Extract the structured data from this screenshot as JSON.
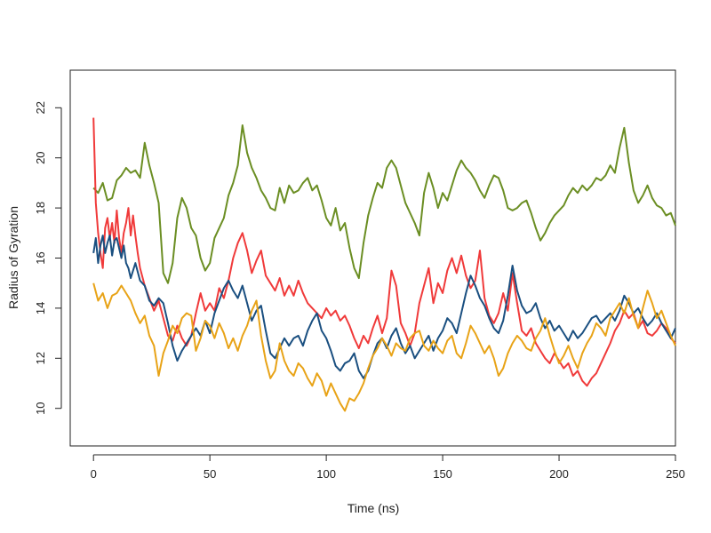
{
  "chart_data": {
    "type": "line",
    "title": "",
    "xlabel": "Time (ns)",
    "ylabel": "Radius of Gyration",
    "xlim": [
      -10,
      250
    ],
    "ylim": [
      8.5,
      23.5
    ],
    "x_ticks": [
      0,
      50,
      100,
      150,
      200,
      250
    ],
    "y_ticks": [
      10,
      12,
      14,
      16,
      18,
      20,
      22
    ],
    "x_tick_labels": [
      "0",
      "50",
      "100",
      "150",
      "200",
      "250"
    ],
    "y_tick_labels": [
      "10",
      "12",
      "14",
      "16",
      "18",
      "20",
      "22"
    ],
    "legend": "none",
    "grid": false,
    "series": [
      {
        "color": "#6b8e23",
        "x": [
          0,
          2,
          4,
          6,
          8,
          10,
          12,
          14,
          16,
          18,
          20,
          22,
          24,
          26,
          28,
          30,
          32,
          34,
          36,
          38,
          40,
          42,
          44,
          46,
          48,
          50,
          52,
          54,
          56,
          58,
          60,
          62,
          64,
          66,
          68,
          70,
          72,
          74,
          76,
          78,
          80,
          82,
          84,
          86,
          88,
          90,
          92,
          94,
          96,
          98,
          100,
          102,
          104,
          106,
          108,
          110,
          112,
          114,
          116,
          118,
          120,
          122,
          124,
          126,
          128,
          130,
          132,
          134,
          136,
          138,
          140,
          142,
          144,
          146,
          148,
          150,
          152,
          154,
          156,
          158,
          160,
          162,
          164,
          166,
          168,
          170,
          172,
          174,
          176,
          178,
          180,
          182,
          184,
          186,
          188,
          190,
          192,
          194,
          196,
          198,
          200,
          202,
          204,
          206,
          208,
          210,
          212,
          214,
          216,
          218,
          220,
          222,
          224,
          226,
          228,
          230,
          232,
          234,
          236,
          238,
          240,
          242,
          244,
          246,
          248,
          250
        ],
        "values": [
          18.8,
          18.6,
          19.0,
          18.3,
          18.4,
          19.1,
          19.3,
          19.6,
          19.4,
          19.5,
          19.2,
          20.6,
          19.7,
          19.0,
          18.2,
          15.4,
          15.0,
          15.8,
          17.6,
          18.4,
          18.0,
          17.2,
          16.9,
          16.0,
          15.5,
          15.8,
          16.8,
          17.2,
          17.6,
          18.5,
          19.0,
          19.7,
          21.3,
          20.2,
          19.6,
          19.2,
          18.7,
          18.4,
          18.0,
          17.9,
          18.8,
          18.2,
          18.9,
          18.6,
          18.7,
          19.0,
          19.2,
          18.7,
          18.9,
          18.3,
          17.6,
          17.3,
          18.0,
          17.1,
          17.4,
          16.4,
          15.6,
          15.2,
          16.6,
          17.7,
          18.4,
          19.0,
          18.8,
          19.6,
          19.9,
          19.6,
          18.9,
          18.2,
          17.8,
          17.4,
          16.9,
          18.6,
          19.4,
          18.8,
          18.0,
          18.6,
          18.3,
          18.9,
          19.5,
          19.9,
          19.6,
          19.4,
          19.1,
          18.7,
          18.4,
          18.9,
          19.3,
          19.2,
          18.7,
          18.0,
          17.9,
          18.0,
          18.2,
          18.3,
          17.8,
          17.2,
          16.7,
          17.0,
          17.4,
          17.7,
          17.9,
          18.1,
          18.5,
          18.8,
          18.6,
          18.9,
          18.7,
          18.9,
          19.2,
          19.1,
          19.3,
          19.7,
          19.4,
          20.4,
          21.2,
          19.8,
          18.7,
          18.2,
          18.5,
          18.9,
          18.4,
          18.1,
          18.0,
          17.7,
          17.8,
          17.3
        ]
      },
      {
        "color": "#f03a3a",
        "x": [
          0,
          1,
          2,
          3,
          4,
          5,
          6,
          7,
          8,
          9,
          10,
          11,
          12,
          13,
          14,
          15,
          16,
          17,
          18,
          19,
          20,
          22,
          24,
          26,
          28,
          30,
          32,
          34,
          36,
          38,
          40,
          42,
          44,
          46,
          48,
          50,
          52,
          54,
          56,
          58,
          60,
          62,
          64,
          66,
          68,
          70,
          72,
          74,
          76,
          78,
          80,
          82,
          84,
          86,
          88,
          90,
          92,
          94,
          96,
          98,
          100,
          102,
          104,
          106,
          108,
          110,
          112,
          114,
          116,
          118,
          120,
          122,
          124,
          126,
          128,
          130,
          132,
          134,
          136,
          138,
          140,
          142,
          144,
          146,
          148,
          150,
          152,
          154,
          156,
          158,
          160,
          162,
          164,
          166,
          168,
          170,
          172,
          174,
          176,
          178,
          180,
          182,
          184,
          186,
          188,
          190,
          192,
          194,
          196,
          198,
          200,
          202,
          204,
          206,
          208,
          210,
          212,
          214,
          216,
          218,
          220,
          222,
          224,
          226,
          228,
          230,
          232,
          234,
          236,
          238,
          240,
          242,
          244,
          246,
          248,
          250
        ],
        "values": [
          21.6,
          18.2,
          17.0,
          16.2,
          15.6,
          17.2,
          17.6,
          16.8,
          17.4,
          16.6,
          17.9,
          16.8,
          16.2,
          17.0,
          17.4,
          18.0,
          16.9,
          17.7,
          16.9,
          16.2,
          15.6,
          14.9,
          14.4,
          13.9,
          14.3,
          13.6,
          12.9,
          12.7,
          13.3,
          12.8,
          12.5,
          12.9,
          13.8,
          14.6,
          13.9,
          14.2,
          13.9,
          14.8,
          14.4,
          15.1,
          16.0,
          16.6,
          17.0,
          16.3,
          15.4,
          15.9,
          16.3,
          15.3,
          15.0,
          14.7,
          15.2,
          14.5,
          14.9,
          14.5,
          15.1,
          14.6,
          14.2,
          14.0,
          13.8,
          13.6,
          14.0,
          13.7,
          13.9,
          13.5,
          13.7,
          13.3,
          12.8,
          12.4,
          12.9,
          12.6,
          13.2,
          13.7,
          13.0,
          13.6,
          15.5,
          14.9,
          13.4,
          13.0,
          12.5,
          13.0,
          14.2,
          14.9,
          15.6,
          14.2,
          15.0,
          14.6,
          15.5,
          16.0,
          15.4,
          16.1,
          15.3,
          14.8,
          15.1,
          16.3,
          14.4,
          13.7,
          13.4,
          13.8,
          14.6,
          13.9,
          15.4,
          14.2,
          13.1,
          12.9,
          13.2,
          12.6,
          12.3,
          12.0,
          11.8,
          12.2,
          11.9,
          11.6,
          11.8,
          11.3,
          11.5,
          11.1,
          10.9,
          11.2,
          11.4,
          11.8,
          12.2,
          12.6,
          13.1,
          13.4,
          13.9,
          13.6,
          13.8,
          13.2,
          13.5,
          13.0,
          12.9,
          13.1,
          13.4,
          13.2,
          12.8,
          12.6
        ]
      },
      {
        "color": "#1a4f80",
        "x": [
          0,
          1,
          2,
          3,
          4,
          5,
          6,
          7,
          8,
          9,
          10,
          11,
          12,
          13,
          14,
          15,
          16,
          18,
          20,
          22,
          24,
          26,
          28,
          30,
          32,
          34,
          36,
          38,
          40,
          42,
          44,
          46,
          48,
          50,
          52,
          54,
          56,
          58,
          60,
          62,
          64,
          66,
          68,
          70,
          72,
          74,
          76,
          78,
          80,
          82,
          84,
          86,
          88,
          90,
          92,
          94,
          96,
          98,
          100,
          102,
          104,
          106,
          108,
          110,
          112,
          114,
          116,
          118,
          120,
          122,
          124,
          126,
          128,
          130,
          132,
          134,
          136,
          138,
          140,
          142,
          144,
          146,
          148,
          150,
          152,
          154,
          156,
          158,
          160,
          162,
          164,
          166,
          168,
          170,
          172,
          174,
          176,
          178,
          180,
          182,
          184,
          186,
          188,
          190,
          192,
          194,
          196,
          198,
          200,
          202,
          204,
          206,
          208,
          210,
          212,
          214,
          216,
          218,
          220,
          222,
          224,
          226,
          228,
          230,
          232,
          234,
          236,
          238,
          240,
          242,
          244,
          246,
          248,
          250
        ],
        "values": [
          16.2,
          16.8,
          15.8,
          16.5,
          16.9,
          16.2,
          16.6,
          16.9,
          16.1,
          16.7,
          16.8,
          16.4,
          16.0,
          16.5,
          15.8,
          15.6,
          15.2,
          15.8,
          15.1,
          14.9,
          14.3,
          14.1,
          14.4,
          14.2,
          13.4,
          12.5,
          11.9,
          12.3,
          12.6,
          12.9,
          13.2,
          12.9,
          13.5,
          13.0,
          13.8,
          14.3,
          14.8,
          15.1,
          14.7,
          14.4,
          14.9,
          14.2,
          13.5,
          13.9,
          14.1,
          13.1,
          12.2,
          12.0,
          12.4,
          12.8,
          12.5,
          12.8,
          12.9,
          12.5,
          13.1,
          13.5,
          13.8,
          13.1,
          12.8,
          12.3,
          11.7,
          11.5,
          11.8,
          11.9,
          12.2,
          11.5,
          11.2,
          11.5,
          12.1,
          12.6,
          12.8,
          12.4,
          12.9,
          13.2,
          12.6,
          12.2,
          12.5,
          12.0,
          12.3,
          12.6,
          12.9,
          12.3,
          12.8,
          13.1,
          13.6,
          13.4,
          13.0,
          13.8,
          14.6,
          15.3,
          14.9,
          14.4,
          14.1,
          13.6,
          13.2,
          13.0,
          13.5,
          14.5,
          15.7,
          14.7,
          14.1,
          13.8,
          13.9,
          14.2,
          13.6,
          13.2,
          13.5,
          13.1,
          13.3,
          13.0,
          12.7,
          13.1,
          12.8,
          13.0,
          13.3,
          13.6,
          13.7,
          13.4,
          13.6,
          13.8,
          13.5,
          13.9,
          14.5,
          14.2,
          13.8,
          14.0,
          13.6,
          13.3,
          13.5,
          13.8,
          13.4,
          13.1,
          12.8,
          13.2
        ]
      },
      {
        "color": "#e8a317",
        "x": [
          0,
          2,
          4,
          6,
          8,
          10,
          12,
          14,
          16,
          18,
          20,
          22,
          24,
          26,
          28,
          30,
          32,
          34,
          36,
          38,
          40,
          42,
          44,
          46,
          48,
          50,
          52,
          54,
          56,
          58,
          60,
          62,
          64,
          66,
          68,
          70,
          72,
          74,
          76,
          78,
          80,
          82,
          84,
          86,
          88,
          90,
          92,
          94,
          96,
          98,
          100,
          102,
          104,
          106,
          108,
          110,
          112,
          114,
          116,
          118,
          120,
          122,
          124,
          126,
          128,
          130,
          132,
          134,
          136,
          138,
          140,
          142,
          144,
          146,
          148,
          150,
          152,
          154,
          156,
          158,
          160,
          162,
          164,
          166,
          168,
          170,
          172,
          174,
          176,
          178,
          180,
          182,
          184,
          186,
          188,
          190,
          192,
          194,
          196,
          198,
          200,
          202,
          204,
          206,
          208,
          210,
          212,
          214,
          216,
          218,
          220,
          222,
          224,
          226,
          228,
          230,
          232,
          234,
          236,
          238,
          240,
          242,
          244,
          246,
          248,
          250
        ],
        "values": [
          15.0,
          14.3,
          14.6,
          14.0,
          14.5,
          14.6,
          14.9,
          14.6,
          14.3,
          13.8,
          13.4,
          13.7,
          12.9,
          12.5,
          11.3,
          12.2,
          12.7,
          13.3,
          13.0,
          13.6,
          13.8,
          13.7,
          12.3,
          12.8,
          13.5,
          13.3,
          12.8,
          13.4,
          13.0,
          12.4,
          12.8,
          12.3,
          12.9,
          13.3,
          13.9,
          14.3,
          12.9,
          11.9,
          11.2,
          11.5,
          12.6,
          11.9,
          11.5,
          11.3,
          11.8,
          11.6,
          11.2,
          10.9,
          11.4,
          11.1,
          10.5,
          11.0,
          10.6,
          10.2,
          9.9,
          10.4,
          10.3,
          10.6,
          11.0,
          11.6,
          12.1,
          12.4,
          12.8,
          12.5,
          12.1,
          12.6,
          12.4,
          12.3,
          12.8,
          13.0,
          13.1,
          12.5,
          12.3,
          12.7,
          12.4,
          12.2,
          12.7,
          12.9,
          12.2,
          12.0,
          12.6,
          13.3,
          13.0,
          12.6,
          12.2,
          12.5,
          12.0,
          11.3,
          11.6,
          12.2,
          12.6,
          12.9,
          12.7,
          12.4,
          12.3,
          12.8,
          13.1,
          13.6,
          12.9,
          12.3,
          11.8,
          12.1,
          12.5,
          12.0,
          11.6,
          12.2,
          12.6,
          12.9,
          13.4,
          13.2,
          12.9,
          13.6,
          13.9,
          14.2,
          13.8,
          14.4,
          13.7,
          13.2,
          14.0,
          14.7,
          14.2,
          13.6,
          13.9,
          13.4,
          12.9,
          12.5
        ]
      }
    ]
  }
}
